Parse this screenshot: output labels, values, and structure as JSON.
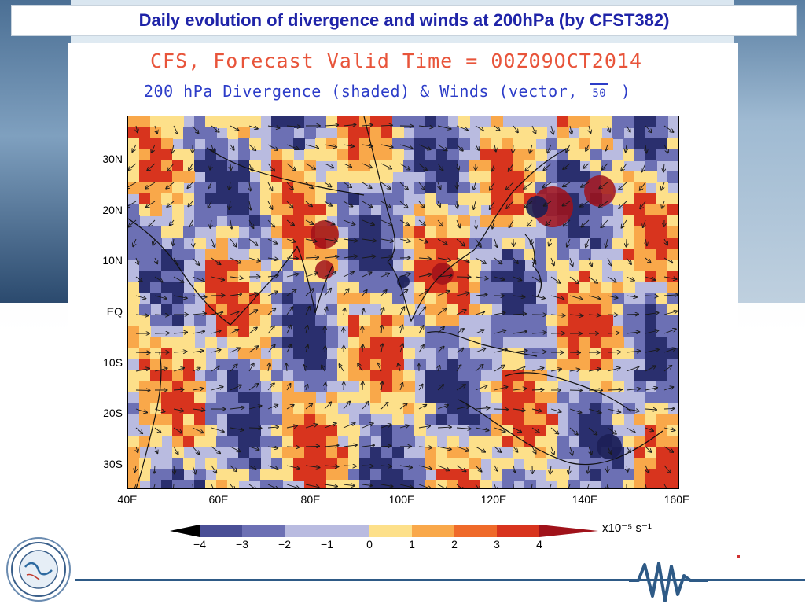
{
  "slide": {
    "title": "Daily evolution of divergence and winds at 200hPa (by CFST382)"
  },
  "figure": {
    "title_line1": "CFS, Forecast Valid Time = 00Z09OCT2014",
    "title_line2_prefix": "200 hPa Divergence (shaded) & Winds (vector,",
    "title_line2_ref": "50",
    "title_line2_suffix": ")",
    "lat_labels": [
      "30N",
      "20N",
      "10N",
      "EQ",
      "10S",
      "20S",
      "30S"
    ],
    "lon_labels": [
      "40E",
      "60E",
      "80E",
      "100E",
      "120E",
      "140E",
      "160E"
    ],
    "colorbar": {
      "ticks": [
        "−4",
        "−3",
        "−2",
        "−1",
        "0",
        "1",
        "2",
        "3",
        "4"
      ],
      "unit": "x10⁻⁵ s⁻¹",
      "colors": [
        "#2a2f6e",
        "#4a4f96",
        "#6c70b4",
        "#b9bbe0",
        "#fde08a",
        "#f9a84a",
        "#ef6a2a",
        "#d8341e",
        "#a0121a"
      ]
    },
    "colors": {
      "strong_convergence": "#2a2f6e",
      "convergence": "#6c70b4",
      "weak": "#b9bbe0",
      "weak_divergence": "#fde08a",
      "divergence": "#f9a84a",
      "strong_divergence": "#d8341e"
    }
  },
  "footer": {
    "logo_icon": "institute-seal-icon",
    "wave_icon": "seismic-wave-icon"
  }
}
